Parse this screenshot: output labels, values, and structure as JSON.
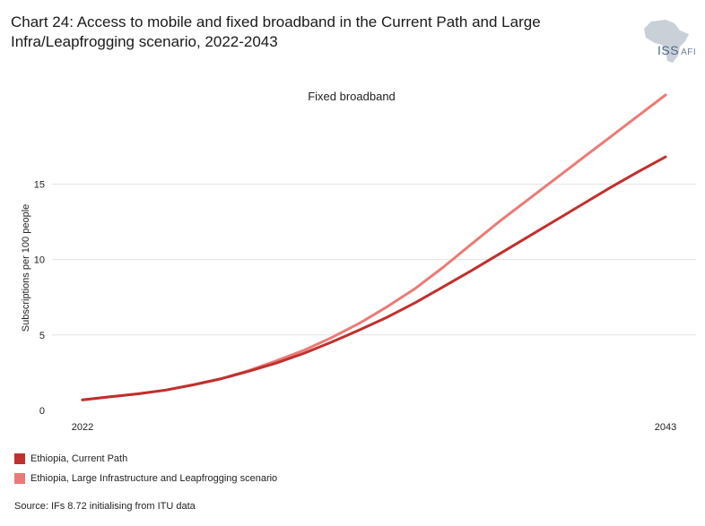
{
  "header": {
    "title": "Chart 24: Access to mobile and fixed broadband in the Current Path and Large Infra/Leapfrogging scenario, 2022-2043",
    "logo_text": "ISS",
    "logo_sub": "AFI"
  },
  "chart_data": {
    "type": "line",
    "title": "Fixed broadband",
    "ylabel": "Subscriptions per 100 people",
    "xlabel": "",
    "xlim": [
      2022,
      2043
    ],
    "ylim": [
      0,
      19
    ],
    "x_ticks": [
      "2022",
      "2043"
    ],
    "y_ticks": [
      0,
      5,
      10,
      15
    ],
    "grid": true,
    "legend_position": "bottom-left",
    "x": [
      2022,
      2023,
      2024,
      2025,
      2026,
      2027,
      2028,
      2029,
      2030,
      2031,
      2032,
      2033,
      2034,
      2035,
      2036,
      2037,
      2038,
      2039,
      2040,
      2041,
      2042,
      2043
    ],
    "series": [
      {
        "name": "Ethiopia, Current Path",
        "color": "#c0302d",
        "values": [
          0.7,
          0.9,
          1.1,
          1.35,
          1.7,
          2.1,
          2.6,
          3.15,
          3.8,
          4.55,
          5.35,
          6.2,
          7.15,
          8.2,
          9.25,
          10.35,
          11.45,
          12.55,
          13.65,
          14.75,
          15.8,
          16.8
        ]
      },
      {
        "name": "Ethiopia, Large Infrastructure and Leapfrogging scenario",
        "color": "#ea7b78",
        "values": [
          0.7,
          0.9,
          1.1,
          1.35,
          1.7,
          2.1,
          2.65,
          3.3,
          4.0,
          4.85,
          5.8,
          6.9,
          8.1,
          9.5,
          11.0,
          12.5,
          13.9,
          15.3,
          16.7,
          18.1,
          19.5,
          20.9
        ]
      }
    ]
  },
  "source": "Source: IFs 8.72 initialising from ITU data"
}
